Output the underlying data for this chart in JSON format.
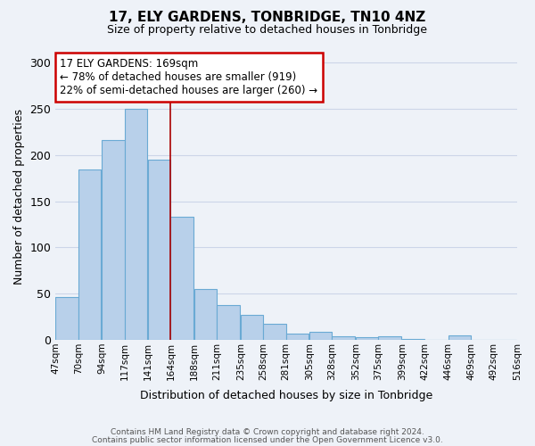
{
  "title": "17, ELY GARDENS, TONBRIDGE, TN10 4NZ",
  "subtitle": "Size of property relative to detached houses in Tonbridge",
  "xlabel": "Distribution of detached houses by size in Tonbridge",
  "ylabel": "Number of detached properties",
  "bin_edges": [
    47,
    70,
    94,
    117,
    141,
    164,
    188,
    211,
    235,
    258,
    281,
    305,
    328,
    352,
    375,
    399,
    422,
    446,
    469,
    492,
    516
  ],
  "bar_heights": [
    46,
    184,
    216,
    250,
    195,
    133,
    55,
    38,
    27,
    17,
    7,
    9,
    4,
    3,
    4,
    1,
    0,
    5,
    0,
    0
  ],
  "tick_labels": [
    "47sqm",
    "70sqm",
    "94sqm",
    "117sqm",
    "141sqm",
    "164sqm",
    "188sqm",
    "211sqm",
    "235sqm",
    "258sqm",
    "281sqm",
    "305sqm",
    "328sqm",
    "352sqm",
    "375sqm",
    "399sqm",
    "422sqm",
    "446sqm",
    "469sqm",
    "492sqm",
    "516sqm"
  ],
  "bar_color": "#b8d0ea",
  "bar_edge_color": "#6aaad4",
  "vline_x": 164,
  "vline_color": "#aa0000",
  "annotation_title": "17 ELY GARDENS: 169sqm",
  "annotation_line1": "← 78% of detached houses are smaller (919)",
  "annotation_line2": "22% of semi-detached houses are larger (260) →",
  "annotation_box_color": "#ffffff",
  "annotation_box_edge": "#cc0000",
  "ylim": [
    0,
    310
  ],
  "yticks": [
    0,
    50,
    100,
    150,
    200,
    250,
    300
  ],
  "grid_color": "#ccd5e8",
  "background_color": "#eef2f8",
  "footer1": "Contains HM Land Registry data © Crown copyright and database right 2024.",
  "footer2": "Contains public sector information licensed under the Open Government Licence v3.0."
}
